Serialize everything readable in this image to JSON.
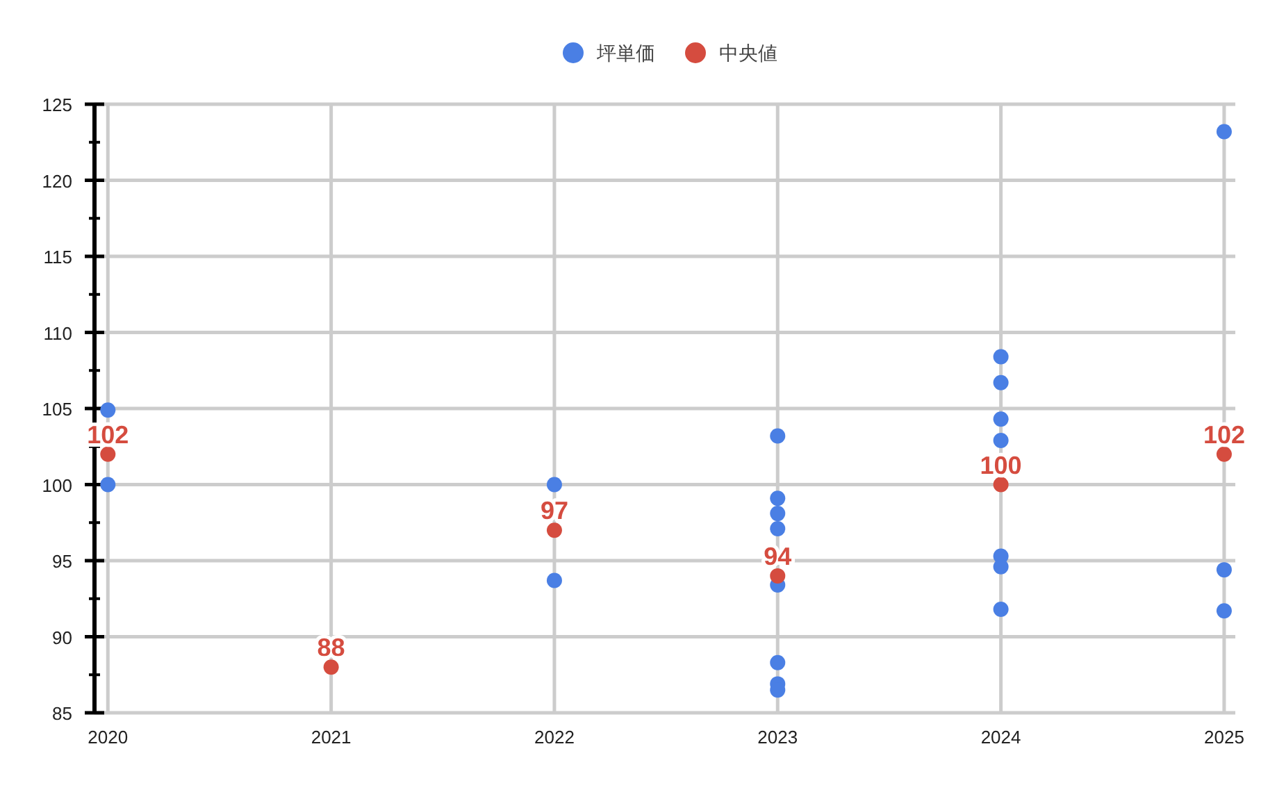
{
  "chart_data": {
    "type": "scatter",
    "xlim": [
      2019.94,
      2025.05
    ],
    "xticks": [
      2020,
      2021,
      2022,
      2023,
      2024,
      2025
    ],
    "ylim": [
      85,
      125
    ],
    "yticks": [
      85,
      {
        "value": 87.5,
        "label": null
      },
      90,
      {
        "value": 92.5,
        "label": null
      },
      95,
      {
        "value": 97.5,
        "label": null
      },
      100,
      {
        "value": 102.5,
        "label": null
      },
      105,
      {
        "value": 107.5,
        "label": null
      },
      110,
      {
        "value": 112.5,
        "label": null
      },
      115,
      {
        "value": 117.5,
        "label": null
      },
      120,
      {
        "value": 122.5,
        "label": null
      },
      125
    ],
    "grid": true,
    "legend": "top",
    "marker": "circle",
    "series": [
      {
        "name": "坪単価",
        "color": "#4a7fe4",
        "x": [
          2020,
          2020,
          2022,
          2022,
          2023,
          2023,
          2023,
          2023,
          2023,
          2023,
          2023,
          2023,
          2024,
          2024,
          2024,
          2024,
          2024,
          2024,
          2024,
          2025,
          2025,
          2025
        ],
        "values": [
          104.9,
          100,
          100,
          93.7,
          103.2,
          99.1,
          98.1,
          97.1,
          93.4,
          88.3,
          86.9,
          86.5,
          108.4,
          106.7,
          104.3,
          102.9,
          95.3,
          94.6,
          91.8,
          123.2,
          94.4,
          91.7
        ]
      },
      {
        "name": "中央値",
        "color": "#d54c3f",
        "x": [
          2020,
          2021,
          2022,
          2023,
          2024,
          2025
        ],
        "values": [
          102,
          88,
          97,
          94,
          100,
          102
        ],
        "value_labels": [
          "102",
          "88",
          "97",
          "94",
          "100",
          "102"
        ]
      }
    ]
  }
}
